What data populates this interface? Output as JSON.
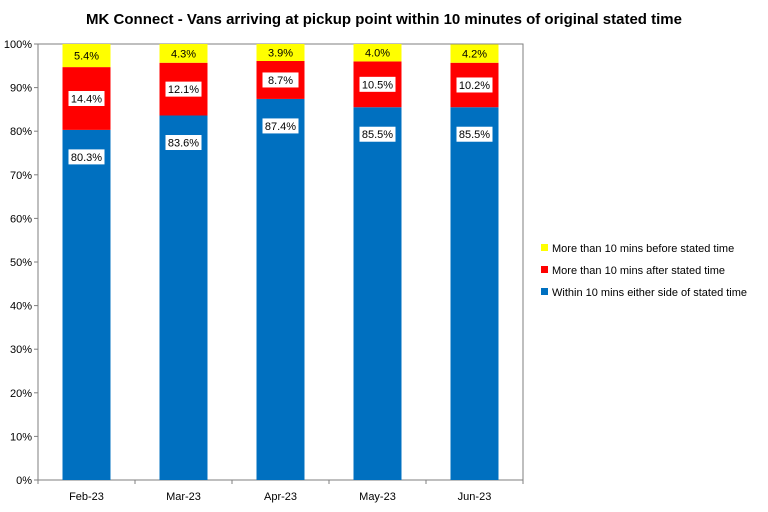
{
  "chart_data": {
    "type": "stacked-bar",
    "title": "MK Connect - Vans arriving at pickup point within 10 minutes of original stated time",
    "categories": [
      "Feb-23",
      "Mar-23",
      "Apr-23",
      "May-23",
      "Jun-23"
    ],
    "series": [
      {
        "name": "Within 10 mins either side of stated time",
        "color": "#0070C0",
        "values": [
          80.3,
          83.6,
          87.4,
          85.5,
          85.5
        ],
        "labels": [
          "80.3%",
          "83.6%",
          "87.4%",
          "85.5%",
          "85.5%"
        ]
      },
      {
        "name": "More than 10 mins after stated time",
        "color": "#FF0000",
        "values": [
          14.4,
          12.1,
          8.7,
          10.5,
          10.2
        ],
        "labels": [
          "14.4%",
          "12.1%",
          "8.7%",
          "10.5%",
          "10.2%"
        ]
      },
      {
        "name": "More than 10 mins before stated time",
        "color": "#FFFF00",
        "values": [
          5.4,
          4.3,
          3.9,
          4.0,
          4.2
        ],
        "labels": [
          "5.4%",
          "4.3%",
          "3.9%",
          "4.0%",
          "4.2%"
        ]
      }
    ],
    "legend_order": [
      2,
      1,
      0
    ],
    "ylim": [
      0,
      100
    ],
    "yticks": [
      0,
      10,
      20,
      30,
      40,
      50,
      60,
      70,
      80,
      90,
      100
    ],
    "ytick_labels": [
      "0%",
      "10%",
      "20%",
      "30%",
      "40%",
      "50%",
      "60%",
      "70%",
      "80%",
      "90%",
      "100%"
    ],
    "grid": false,
    "legend_position": "right"
  }
}
